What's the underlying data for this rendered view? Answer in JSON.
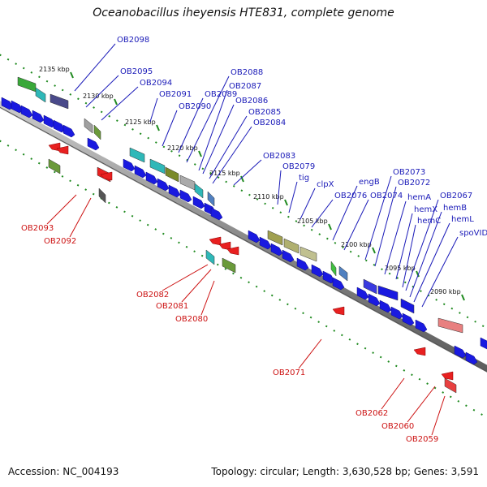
{
  "title": "Oceanobacillus iheyensis HTE831, complete genome",
  "footer": {
    "accession": "Accession: NC_004193",
    "topology": "Topology: circular; Length: 3,630,528 bp; Genes: 3,591"
  },
  "colors": {
    "forward_label": "#1a1ab8",
    "reverse_label": "#cc1111",
    "backbone": "#888888",
    "tick": "#1f8a1f"
  },
  "kbp_labels": [
    "2135 kbp",
    "2130 kbp",
    "2125 kbp",
    "2120 kbp",
    "2115 kbp",
    "2110 kbp",
    "2105 kbp",
    "2100 kbp",
    "2095 kbp",
    "2090 kbp"
  ],
  "forward_genes": [
    "OB2098",
    "OB2095",
    "OB2094",
    "OB2091",
    "OB2090",
    "OB2089",
    "OB2088",
    "OB2087",
    "OB2086",
    "OB2085",
    "OB2084",
    "OB2083",
    "OB2079",
    "tig",
    "clpX",
    "OB2076",
    "engB",
    "OB2074",
    "OB2073",
    "OB2072",
    "hemA",
    "hemX",
    "hemC",
    "OB2067",
    "hemB",
    "hemL",
    "spoVID"
  ],
  "reverse_genes": [
    "OB2093",
    "OB2092",
    "OB2082",
    "OB2081",
    "OB2080",
    "OB2071",
    "OB2062",
    "OB2060",
    "OB2059"
  ]
}
